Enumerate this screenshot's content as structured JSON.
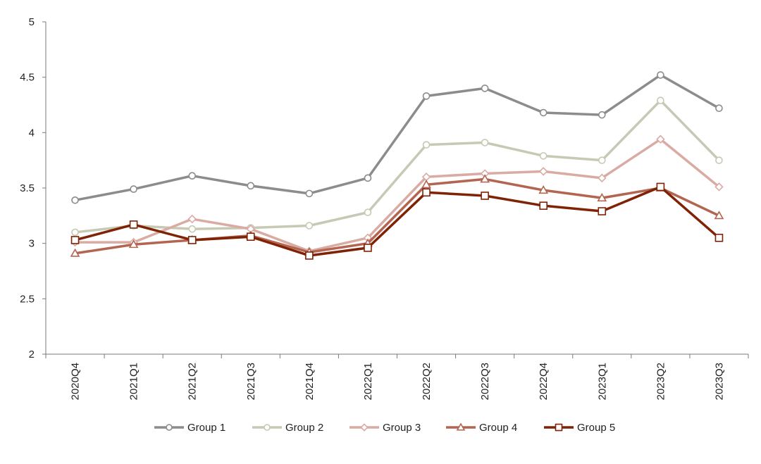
{
  "chart_data": {
    "type": "line",
    "title": "",
    "xlabel": "",
    "ylabel": "",
    "categories": [
      "2020Q4",
      "2021Q1",
      "2021Q2",
      "2021Q3",
      "2021Q4",
      "2022Q1",
      "2022Q2",
      "2022Q3",
      "2022Q4",
      "2023Q1",
      "2023Q2",
      "2023Q3"
    ],
    "ylim": [
      2,
      5
    ],
    "yticks": [
      2,
      2.5,
      3,
      3.5,
      4,
      4.5,
      5
    ],
    "ytick_labels": [
      "2",
      "2.5",
      "3",
      "3.5",
      "4",
      "4.5",
      "5"
    ],
    "grid": false,
    "legend_position": "bottom",
    "series": [
      {
        "name": "Group 1",
        "color": "#8c8c8c",
        "marker": "circle",
        "values": [
          3.39,
          3.49,
          3.61,
          3.52,
          3.45,
          3.59,
          4.33,
          4.4,
          4.18,
          4.16,
          4.52,
          4.22
        ]
      },
      {
        "name": "Group 2",
        "color": "#c6c9b3",
        "marker": "circle",
        "values": [
          3.1,
          3.16,
          3.13,
          3.14,
          3.16,
          3.28,
          3.89,
          3.91,
          3.79,
          3.75,
          4.29,
          3.75
        ]
      },
      {
        "name": "Group 3",
        "color": "#d9aba3",
        "marker": "diamond",
        "values": [
          3.01,
          3.01,
          3.22,
          3.13,
          2.93,
          3.05,
          3.6,
          3.63,
          3.65,
          3.59,
          3.94,
          3.51
        ]
      },
      {
        "name": "Group 4",
        "color": "#b36552",
        "marker": "triangle",
        "values": [
          2.91,
          2.99,
          3.03,
          3.07,
          2.92,
          3.0,
          3.53,
          3.58,
          3.48,
          3.41,
          3.5,
          3.25
        ]
      },
      {
        "name": "Group 5",
        "color": "#7f2205",
        "marker": "square",
        "values": [
          3.03,
          3.17,
          3.03,
          3.06,
          2.89,
          2.96,
          3.46,
          3.43,
          3.34,
          3.29,
          3.51,
          3.05
        ]
      }
    ]
  }
}
